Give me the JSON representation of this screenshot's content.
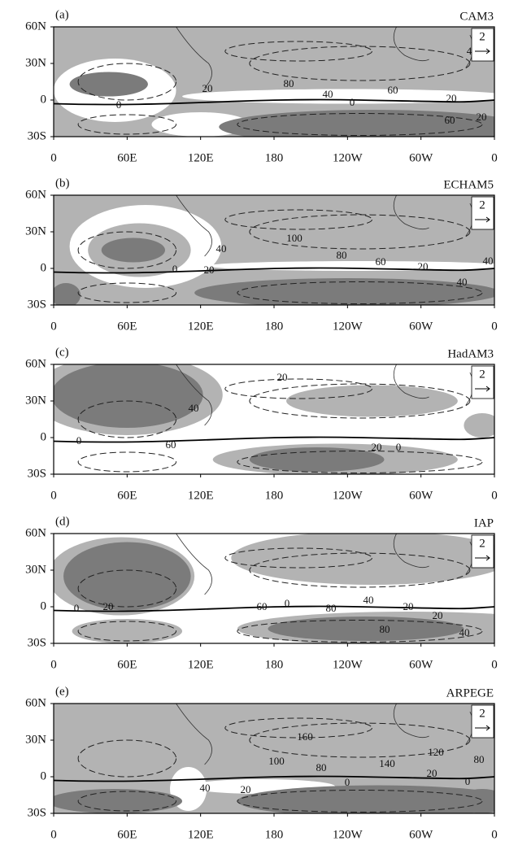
{
  "y_axis_labels": [
    "60N",
    "30N",
    "0",
    "30S"
  ],
  "x_axis_labels": [
    "0",
    "60E",
    "120E",
    "180",
    "120W",
    "60W",
    "0"
  ],
  "panels": [
    {
      "label": "(a)",
      "model": "CAM3",
      "vector_scale": "2",
      "contour_labels": [
        "20",
        "80",
        "40",
        "0",
        "60",
        "20",
        "60",
        "20",
        "0",
        "4"
      ]
    },
    {
      "label": "(b)",
      "model": "ECHAM5",
      "vector_scale": "2",
      "contour_labels": [
        "100",
        "40",
        "80",
        "60",
        "20",
        "40",
        "40",
        "0",
        "20"
      ]
    },
    {
      "label": "(c)",
      "model": "HadAM3",
      "vector_scale": "2",
      "contour_labels": [
        "20",
        "40",
        "60",
        "0",
        "20",
        "0"
      ]
    },
    {
      "label": "(d)",
      "model": "IAP",
      "vector_scale": "2",
      "contour_labels": [
        "60",
        "80",
        "0",
        "40",
        "20",
        "20",
        "40",
        "80",
        "0",
        "20"
      ]
    },
    {
      "label": "(e)",
      "model": "ARPEGE",
      "vector_scale": "2",
      "contour_labels": [
        "160",
        "100",
        "80",
        "140",
        "120",
        "80",
        "20",
        "0",
        "0",
        "40",
        "20"
      ]
    }
  ]
}
